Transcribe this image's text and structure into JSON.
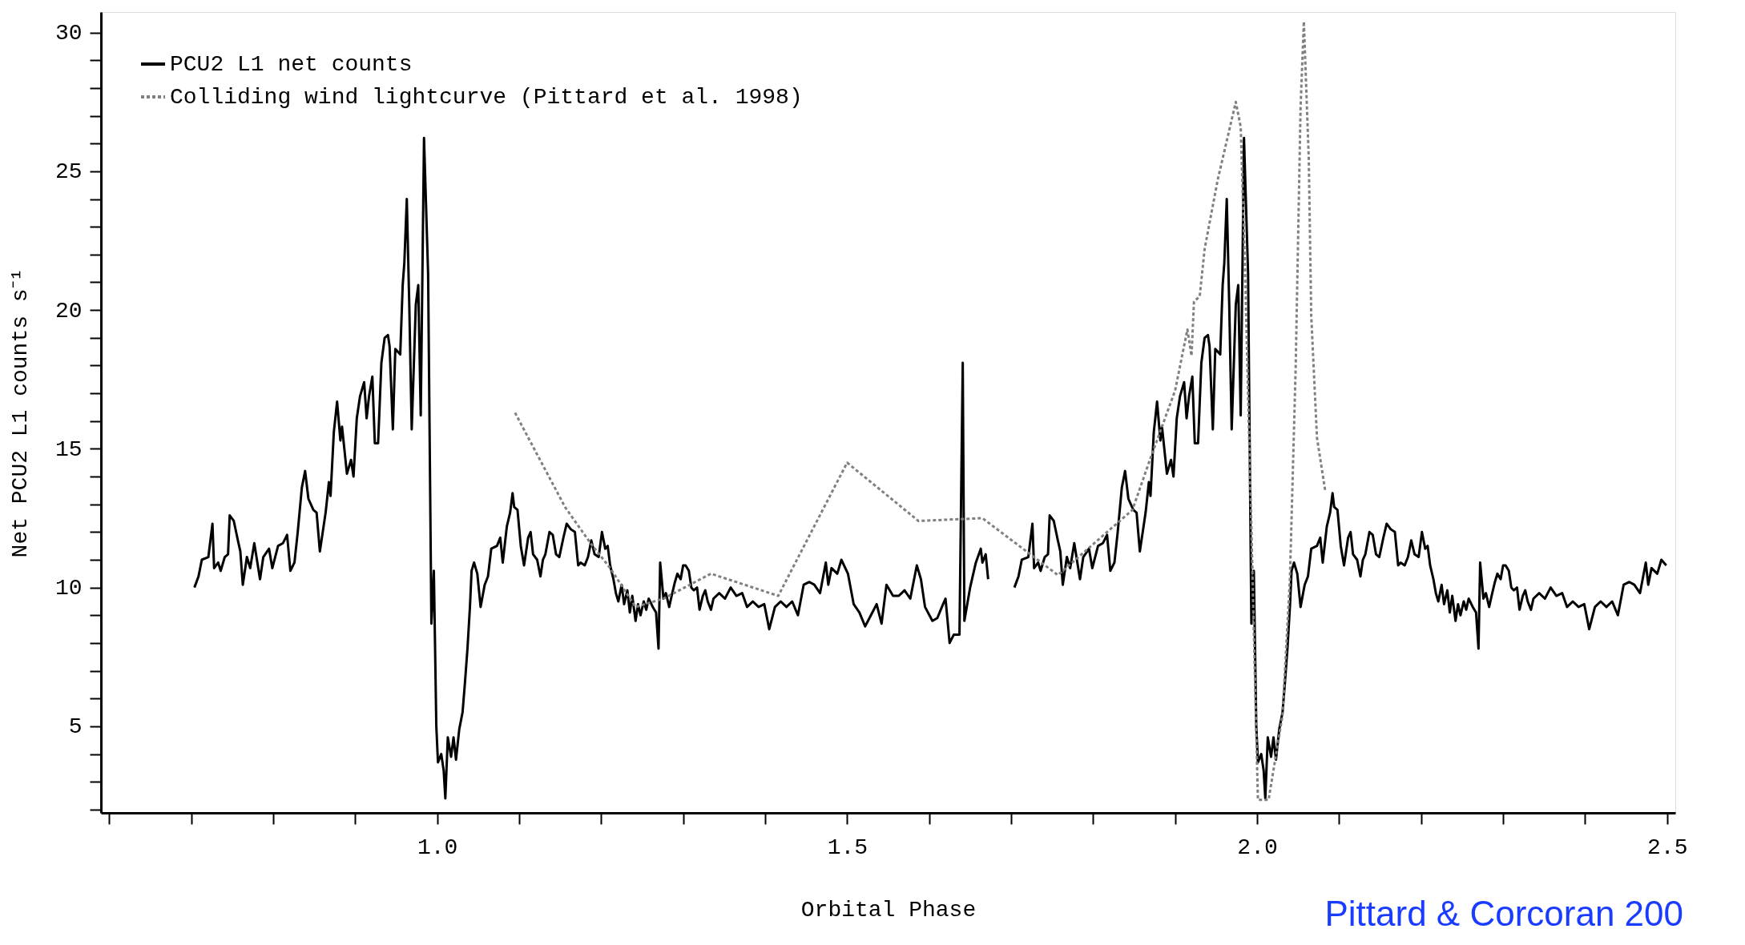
{
  "chart_data": {
    "type": "line",
    "xlabel": "Orbital Phase",
    "ylabel": "Net PCU2 L1 counts s⁻¹",
    "xlim": [
      0.59,
      2.51
    ],
    "ylim": [
      1.88,
      30.74
    ],
    "xticks": [
      {
        "value": 0.6,
        "label": null
      },
      {
        "value": 0.7,
        "label": null
      },
      {
        "value": 0.8,
        "label": null
      },
      {
        "value": 0.9,
        "label": null
      },
      {
        "value": 1.0,
        "label": "1.0"
      },
      {
        "value": 1.1,
        "label": null
      },
      {
        "value": 1.2,
        "label": null
      },
      {
        "value": 1.3,
        "label": null
      },
      {
        "value": 1.4,
        "label": null
      },
      {
        "value": 1.5,
        "label": "1.5"
      },
      {
        "value": 1.6,
        "label": null
      },
      {
        "value": 1.7,
        "label": null
      },
      {
        "value": 1.8,
        "label": null
      },
      {
        "value": 1.9,
        "label": null
      },
      {
        "value": 2.0,
        "label": "2.0"
      },
      {
        "value": 2.1,
        "label": null
      },
      {
        "value": 2.2,
        "label": null
      },
      {
        "value": 2.3,
        "label": null
      },
      {
        "value": 2.4,
        "label": null
      },
      {
        "value": 2.5,
        "label": "2.5"
      }
    ],
    "yticks": [
      {
        "value": 2,
        "label": null
      },
      {
        "value": 3,
        "label": null
      },
      {
        "value": 4,
        "label": null
      },
      5,
      {
        "value": 6,
        "label": null
      },
      {
        "value": 7,
        "label": null
      },
      {
        "value": 8,
        "label": null
      },
      {
        "value": 9,
        "label": null
      },
      10,
      {
        "value": 11,
        "label": null
      },
      {
        "value": 12,
        "label": null
      },
      {
        "value": 13,
        "label": null
      },
      {
        "value": 14,
        "label": null
      },
      15,
      {
        "value": 16,
        "label": null
      },
      {
        "value": 17,
        "label": null
      },
      {
        "value": 18,
        "label": null
      },
      {
        "value": 19,
        "label": null
      },
      20,
      {
        "value": 21,
        "label": null
      },
      {
        "value": 22,
        "label": null
      },
      {
        "value": 23,
        "label": null
      },
      {
        "value": 24,
        "label": null
      },
      25,
      {
        "value": 26,
        "label": null
      },
      {
        "value": 27,
        "label": null
      },
      {
        "value": 28,
        "label": null
      },
      {
        "value": 29,
        "label": null
      },
      30
    ],
    "grid": false,
    "legend": "top left",
    "marker": "none",
    "annotations": [
      "Pittard & Corcoran 200"
    ],
    "series": [
      {
        "name": "PCU2 L1 net counts",
        "color": "#000000",
        "line_style": "solid",
        "x": [
          0.704,
          0.709,
          0.713,
          0.721,
          0.726,
          0.728,
          0.733,
          0.736,
          0.741,
          0.745,
          0.747,
          0.752,
          0.757,
          0.76,
          0.763,
          0.768,
          0.772,
          0.777,
          0.784,
          0.788,
          0.795,
          0.799,
          0.806,
          0.812,
          0.817,
          0.821,
          0.826,
          0.83,
          0.835,
          0.839,
          0.843,
          0.849,
          0.853,
          0.857,
          0.864,
          0.868,
          0.87,
          0.874,
          0.878,
          0.882,
          0.884,
          0.89,
          0.895,
          0.898,
          0.902,
          0.906,
          0.911,
          0.914,
          0.917,
          0.921,
          0.924,
          0.928,
          0.932,
          0.936,
          0.94,
          0.942,
          0.946,
          0.949,
          0.955,
          0.958,
          0.96,
          0.963,
          0.966,
          0.969,
          0.974,
          0.977,
          0.98,
          0.984,
          0.989,
          0.993,
          0.996,
          0.999,
          1.001,
          1.005,
          1.008,
          1.01,
          1.013,
          1.017,
          1.02,
          1.023,
          1.027,
          1.031,
          1.034,
          1.037,
          1.04,
          1.042,
          1.045,
          1.049,
          1.053,
          1.058,
          1.062,
          1.066,
          1.073,
          1.077,
          1.08,
          1.085,
          1.089,
          1.092,
          1.094,
          1.098,
          1.102,
          1.106,
          1.111,
          1.114,
          1.117,
          1.122,
          1.126,
          1.129,
          1.132,
          1.137,
          1.141,
          1.145,
          1.149,
          1.154,
          1.158,
          1.163,
          1.168,
          1.172,
          1.175,
          1.18,
          1.184,
          1.188,
          1.192,
          1.197,
          1.201,
          1.205,
          1.208,
          1.211,
          1.215,
          1.218,
          1.221,
          1.225,
          1.228,
          1.232,
          1.235,
          1.238,
          1.242,
          1.245,
          1.248,
          1.252,
          1.255,
          1.258,
          1.263,
          1.267,
          1.27,
          1.272,
          1.276,
          1.279,
          1.283,
          1.286,
          1.29,
          1.293,
          1.297,
          1.3,
          1.303,
          1.307,
          1.31,
          1.313,
          1.317,
          1.32,
          1.324,
          1.327,
          1.33,
          1.334,
          1.337,
          1.344,
          1.351,
          1.358,
          1.365,
          1.372,
          1.378,
          1.385,
          1.392,
          1.399,
          1.405,
          1.412,
          1.419,
          1.426,
          1.433,
          1.44,
          1.447,
          1.454,
          1.46,
          1.467,
          1.474,
          1.477,
          1.481,
          1.488,
          1.493,
          1.501,
          1.508,
          1.515,
          1.522,
          1.529,
          1.536,
          1.542,
          1.548,
          1.556,
          1.563,
          1.57,
          1.577,
          1.585,
          1.59,
          1.595,
          1.604,
          1.61,
          1.617,
          1.62,
          1.625,
          1.63,
          1.637,
          1.641,
          1.643,
          1.65,
          1.657,
          1.663,
          1.665,
          1.669,
          1.672,
          1.688,
          1.704,
          1.709,
          1.713,
          1.721,
          1.726,
          1.728,
          1.733,
          1.736,
          1.741,
          1.745,
          1.747,
          1.752,
          1.757,
          1.76,
          1.763,
          1.768,
          1.772,
          1.777,
          1.784,
          1.788,
          1.795,
          1.799,
          1.806,
          1.812,
          1.817,
          1.821,
          1.826,
          1.83,
          1.835,
          1.839,
          1.843,
          1.849,
          1.853,
          1.857,
          1.864,
          1.868,
          1.87,
          1.874,
          1.878,
          1.882,
          1.884,
          1.89,
          1.895,
          1.898,
          1.902,
          1.906,
          1.911,
          1.914,
          1.917,
          1.921,
          1.924,
          1.928,
          1.932,
          1.936,
          1.94,
          1.942,
          1.946,
          1.949,
          1.955,
          1.958,
          1.96,
          1.963,
          1.966,
          1.969,
          1.974,
          1.977,
          1.98,
          1.984,
          1.989,
          1.993,
          1.996,
          1.999,
          2.001,
          2.005,
          2.008,
          2.01,
          2.013,
          2.017,
          2.02,
          2.023,
          2.027,
          2.031,
          2.034,
          2.037,
          2.04,
          2.042,
          2.045,
          2.049,
          2.053,
          2.058,
          2.062,
          2.066,
          2.073,
          2.077,
          2.08,
          2.085,
          2.089,
          2.092,
          2.094,
          2.098,
          2.102,
          2.106,
          2.111,
          2.114,
          2.117,
          2.122,
          2.126,
          2.129,
          2.132,
          2.137,
          2.141,
          2.145,
          2.149,
          2.154,
          2.158,
          2.163,
          2.168,
          2.172,
          2.175,
          2.18,
          2.184,
          2.188,
          2.192,
          2.197,
          2.201,
          2.205,
          2.208,
          2.211,
          2.215,
          2.218,
          2.221,
          2.225,
          2.228,
          2.232,
          2.235,
          2.238,
          2.242,
          2.245,
          2.248,
          2.252,
          2.255,
          2.258,
          2.263,
          2.267,
          2.27,
          2.272,
          2.276,
          2.279,
          2.283,
          2.286,
          2.29,
          2.293,
          2.297,
          2.3,
          2.303,
          2.307,
          2.31,
          2.313,
          2.317,
          2.32,
          2.324,
          2.327,
          2.33,
          2.334,
          2.337,
          2.344,
          2.351,
          2.358,
          2.365,
          2.372,
          2.378,
          2.385,
          2.392,
          2.399,
          2.405,
          2.412,
          2.419,
          2.426,
          2.433,
          2.44,
          2.447,
          2.454,
          2.46,
          2.467,
          2.474,
          2.477,
          2.481,
          2.488,
          2.493,
          2.499
        ],
        "values": [
          10.0,
          10.4,
          11.0,
          11.1,
          12.3,
          10.7,
          10.9,
          10.6,
          11.1,
          11.2,
          12.6,
          12.4,
          11.7,
          11.3,
          10.1,
          11.1,
          10.7,
          11.6,
          10.3,
          11.1,
          11.4,
          10.7,
          11.5,
          11.6,
          11.9,
          10.6,
          10.9,
          12.0,
          13.6,
          14.2,
          13.2,
          12.8,
          12.7,
          11.3,
          12.7,
          13.8,
          13.3,
          15.6,
          16.7,
          15.3,
          15.8,
          14.1,
          14.6,
          14.0,
          16.1,
          16.9,
          17.4,
          16.1,
          16.9,
          17.6,
          15.2,
          15.2,
          18.1,
          19.0,
          19.1,
          18.7,
          15.7,
          18.6,
          18.4,
          20.9,
          21.7,
          24.0,
          20.2,
          15.7,
          20.2,
          20.9,
          16.2,
          26.2,
          21.3,
          8.7,
          10.6,
          5.0,
          3.7,
          4.0,
          3.4,
          2.4,
          4.6,
          3.9,
          4.6,
          3.8,
          4.9,
          5.5,
          6.6,
          7.8,
          9.3,
          10.6,
          10.9,
          10.5,
          9.3,
          10.1,
          10.4,
          11.4,
          11.5,
          11.8,
          10.9,
          12.2,
          12.7,
          13.4,
          12.9,
          12.8,
          11.5,
          10.8,
          11.8,
          12.0,
          11.2,
          11.0,
          10.4,
          11.0,
          11.2,
          12.0,
          11.9,
          11.2,
          11.1,
          11.8,
          12.3,
          12.1,
          12.0,
          10.8,
          10.9,
          10.8,
          11.1,
          11.7,
          11.2,
          11.1,
          12.0,
          11.4,
          11.5,
          10.8,
          10.3,
          9.8,
          9.5,
          10.1,
          9.4,
          9.9,
          9.1,
          9.7,
          8.8,
          9.4,
          9.0,
          9.5,
          9.2,
          9.6,
          9.3,
          9.1,
          7.8,
          10.9,
          9.6,
          9.8,
          9.3,
          9.7,
          10.2,
          10.5,
          10.3,
          10.8,
          10.8,
          10.6,
          10.0,
          9.9,
          10.0,
          9.2,
          9.7,
          9.9,
          9.5,
          9.2,
          9.6,
          9.8,
          9.6,
          10.0,
          9.7,
          9.8,
          9.3,
          9.5,
          9.3,
          9.4,
          8.5,
          9.3,
          9.5,
          9.3,
          9.5,
          9.0,
          10.1,
          10.2,
          10.1,
          9.8,
          10.9,
          10.1,
          10.7,
          10.5,
          11.0,
          10.5,
          9.4,
          9.1,
          8.6,
          9.0,
          9.4,
          8.7,
          10.1,
          9.7,
          9.7,
          9.9,
          9.6,
          10.8,
          10.3,
          9.3,
          8.8,
          8.9,
          9.4,
          9.6,
          8.0,
          8.3,
          8.3,
          18.1,
          8.8,
          10.0,
          10.9,
          11.4,
          10.9,
          11.2,
          10.3,
          null,
          10.0,
          10.4,
          11.0,
          11.1,
          12.3,
          10.7,
          10.9,
          10.6,
          11.1,
          11.2,
          12.6,
          12.4,
          11.7,
          11.3,
          10.1,
          11.1,
          10.7,
          11.6,
          10.3,
          11.1,
          11.4,
          10.7,
          11.5,
          11.6,
          11.9,
          10.6,
          10.9,
          12.0,
          13.6,
          14.2,
          13.2,
          12.8,
          12.7,
          11.3,
          12.7,
          13.8,
          13.3,
          15.6,
          16.7,
          15.3,
          15.8,
          14.1,
          14.6,
          14.0,
          16.1,
          16.9,
          17.4,
          16.1,
          16.9,
          17.6,
          15.2,
          15.2,
          18.1,
          19.0,
          19.1,
          18.7,
          15.7,
          18.6,
          18.4,
          20.9,
          21.7,
          24.0,
          20.2,
          15.7,
          20.2,
          20.9,
          16.2,
          26.2,
          21.3,
          8.7,
          10.6,
          5.0,
          3.7,
          4.0,
          3.4,
          2.4,
          4.6,
          3.9,
          4.6,
          3.8,
          4.9,
          5.5,
          6.6,
          7.8,
          9.3,
          10.6,
          10.9,
          10.5,
          9.3,
          10.1,
          10.4,
          11.4,
          11.5,
          11.8,
          10.9,
          12.2,
          12.7,
          13.4,
          12.9,
          12.8,
          11.5,
          10.8,
          11.8,
          12.0,
          11.2,
          11.0,
          10.4,
          11.0,
          11.2,
          12.0,
          11.9,
          11.2,
          11.1,
          11.8,
          12.3,
          12.1,
          12.0,
          10.8,
          10.9,
          10.8,
          11.1,
          11.7,
          11.2,
          11.1,
          12.0,
          11.4,
          11.5,
          10.8,
          10.3,
          9.8,
          9.5,
          10.1,
          9.4,
          9.9,
          9.1,
          9.7,
          8.8,
          9.4,
          9.0,
          9.5,
          9.2,
          9.6,
          9.3,
          9.1,
          7.8,
          10.9,
          9.6,
          9.8,
          9.3,
          9.7,
          10.2,
          10.5,
          10.3,
          10.8,
          10.8,
          10.6,
          10.0,
          9.9,
          10.0,
          9.2,
          9.7,
          9.9,
          9.5,
          9.2,
          9.6,
          9.8,
          9.6,
          10.0,
          9.7,
          9.8,
          9.3,
          9.5,
          9.3,
          9.4,
          8.5,
          9.3,
          9.5,
          9.3,
          9.5,
          9.0,
          10.1,
          10.2,
          10.1,
          9.8,
          10.9,
          10.1,
          10.7,
          10.5,
          11.0,
          10.8
        ]
      },
      {
        "name": "Colliding wind lightcurve (Pittard et al. 1998)",
        "color": "#808080",
        "line_style": "dotted",
        "x": [
          1.095,
          1.156,
          1.187,
          1.211,
          1.242,
          1.276,
          1.334,
          1.416,
          1.5,
          1.587,
          1.665,
          1.757,
          1.848,
          1.868,
          1.9,
          1.915,
          1.92,
          1.923,
          1.93,
          1.936,
          1.952,
          1.974,
          1.98,
          1.985,
          1.993,
          1.998,
          2.001,
          2.014,
          2.031,
          2.04,
          2.047,
          2.053,
          2.057,
          2.063,
          2.066,
          2.073,
          2.083
        ],
        "values": [
          16.3,
          12.9,
          11.6,
          10.7,
          9.3,
          9.6,
          10.5,
          9.7,
          14.5,
          12.4,
          12.5,
          10.45,
          12.8,
          14.5,
          17.1,
          19.3,
          18.35,
          20.3,
          20.5,
          22.2,
          24.7,
          27.5,
          26.6,
          21.7,
          12.2,
          5.95,
          2.35,
          2.35,
          5.4,
          10.3,
          17.9,
          27.3,
          30.4,
          25.45,
          19.8,
          15.4,
          13.5
        ]
      }
    ]
  }
}
